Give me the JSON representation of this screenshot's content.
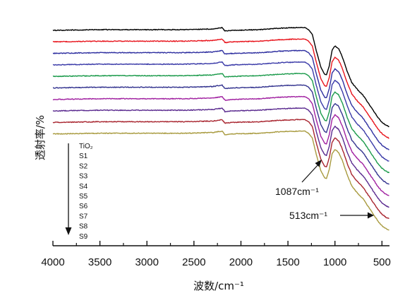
{
  "chart_data": {
    "type": "line",
    "xlabel": "波数/cm⁻¹",
    "ylabel": "透射率/%",
    "xlim": [
      4000,
      420
    ],
    "x_reversed": true,
    "xticks": [
      "4000",
      "3500",
      "3000",
      "2500",
      "2000",
      "1500",
      "1000",
      "500"
    ],
    "xtick_values": [
      4000,
      3500,
      3000,
      2500,
      2000,
      1500,
      1000,
      500
    ],
    "legend_title_arrow": "down",
    "legend_placement": "left",
    "grid": false,
    "series": [
      {
        "name": "TiO₂",
        "color": "#000000",
        "offset": 0
      },
      {
        "name": "S1",
        "color": "#e8141c",
        "offset": 1
      },
      {
        "name": "S2",
        "color": "#2e2fa0",
        "offset": 2
      },
      {
        "name": "S3",
        "color": "#3a3aa8",
        "offset": 3
      },
      {
        "name": "S4",
        "color": "#1a9a4a",
        "offset": 4
      },
      {
        "name": "S5",
        "color": "#33338f",
        "offset": 5
      },
      {
        "name": "S6",
        "color": "#a020a0",
        "offset": 6
      },
      {
        "name": "S7",
        "color": "#5a2a8f",
        "offset": 7
      },
      {
        "name": "S8",
        "color": "#a8242e",
        "offset": 8
      },
      {
        "name": "S9",
        "color": "#a89a3e",
        "offset": 9
      }
    ],
    "annotations": [
      {
        "text": "1087cm⁻¹",
        "x": 1087
      },
      {
        "text": "513cm⁻¹",
        "x": 513
      }
    ]
  }
}
